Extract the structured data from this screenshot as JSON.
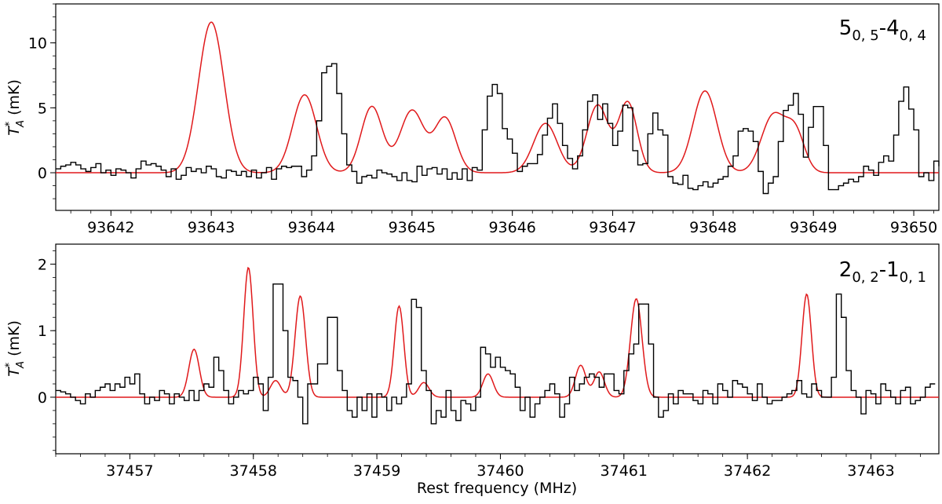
{
  "chart_data": [
    {
      "type": "line",
      "panel_label": {
        "main": "5",
        "sub1": "0, 5",
        "dash": "-4",
        "sub2": "0, 4"
      },
      "ylabel": {
        "symbol": "T",
        "sup": "*",
        "sub": "A",
        "unit": " (mK)"
      },
      "xlabel": "",
      "xlim": [
        93641.45,
        93650.25
      ],
      "ylim": [
        -2.9,
        13.0
      ],
      "xticks": [
        93642,
        93643,
        93644,
        93645,
        93646,
        93647,
        93648,
        93649,
        93650
      ],
      "yticks": [
        0,
        5,
        10
      ],
      "xtick_labels": [
        "93642",
        "93643",
        "93644",
        "93645",
        "93646",
        "93647",
        "93648",
        "93649",
        "93650"
      ],
      "ytick_labels": [
        "0",
        "5",
        "10"
      ],
      "y_minor_step": 1,
      "x_minor_step": 0.2,
      "series": [
        {
          "color": "#000000",
          "style": "steps",
          "x_start": 93641.45,
          "x_step": 0.05,
          "values": [
            0.3,
            0.5,
            0.6,
            0.8,
            0.6,
            0.3,
            0.1,
            0.4,
            0.7,
            0.0,
            0.2,
            -0.2,
            0.3,
            0.2,
            0.0,
            -0.4,
            0.3,
            0.9,
            0.6,
            0.7,
            0.5,
            0.2,
            -0.3,
            0.3,
            -0.5,
            -0.2,
            0.4,
            0.1,
            0.3,
            0.0,
            0.5,
            0.3,
            -0.3,
            -0.4,
            0.2,
            0.1,
            -0.2,
            0.1,
            -0.3,
            0.2,
            -0.4,
            0.0,
            0.4,
            -0.5,
            0.3,
            0.5,
            0.4,
            0.5,
            0.5,
            -0.3,
            0.2,
            1.3,
            4.0,
            7.7,
            8.2,
            8.4,
            6.1,
            3.0,
            0.6,
            0.1,
            -0.8,
            -0.3,
            -0.2,
            -0.4,
            0.2,
            0.0,
            -0.1,
            -0.3,
            -0.6,
            0.0,
            -0.6,
            -0.7,
            0.5,
            -0.2,
            0.3,
            0.4,
            -0.1,
            0.3,
            -0.5,
            0.0,
            -0.5,
            0.3,
            -0.6,
            0.4,
            0.2,
            3.3,
            5.9,
            6.8,
            6.1,
            3.4,
            2.6,
            1.5,
            0.1,
            0.5,
            0.7,
            0.7,
            1.4,
            2.9,
            4.2,
            5.3,
            3.8,
            2.1,
            1.1,
            0.3,
            1.3,
            3.3,
            5.5,
            6.0,
            4.1,
            5.3,
            3.8,
            2.1,
            3.2,
            5.2,
            5.0,
            1.7,
            0.6,
            0.7,
            3.0,
            4.6,
            3.3,
            2.9,
            -0.3,
            -0.8,
            -0.9,
            -0.2,
            -1.2,
            -1.3,
            -1.0,
            -0.7,
            -1.1,
            -0.8,
            -0.5,
            -0.3,
            0.5,
            1.3,
            3.2,
            3.4,
            3.2,
            2.4,
            0.1,
            -1.6,
            -0.8,
            -0.3,
            2.4,
            4.8,
            5.2,
            6.1,
            4.5,
            1.2,
            3.5,
            5.1,
            5.1,
            2.1,
            -1.3,
            -1.3,
            -1.0,
            -0.8,
            -0.5,
            -0.7,
            -0.3,
            0.5,
            0.2,
            -0.2,
            0.8,
            1.3,
            0.9,
            2.9,
            5.5,
            6.6,
            4.9,
            3.3,
            -0.3,
            0.0,
            -0.6,
            0.9,
            0.5,
            0.4,
            1.4,
            2.6,
            3.1,
            2.7,
            4.5,
            3.4,
            2.2,
            1.3,
            0.8,
            2.3,
            1.9,
            0.3,
            0.8,
            -0.2,
            -0.5,
            -2.0,
            -1.3,
            -0.3,
            -1.2,
            0.3,
            -0.1,
            -2.1,
            -0.2,
            2.2,
            1.2,
            -0.4,
            -0.1,
            -1.0,
            -0.2,
            2.3,
            -0.6,
            -0.5
          ]
        },
        {
          "color": "#e0191b",
          "style": "model",
          "components": [
            {
              "center": 93643.0,
              "amp": 11.6,
              "fwhm": 0.3
            },
            {
              "center": 93643.93,
              "amp": 6.0,
              "fwhm": 0.28
            },
            {
              "center": 93644.6,
              "amp": 5.1,
              "fwhm": 0.25
            },
            {
              "center": 93645.0,
              "amp": 4.8,
              "fwhm": 0.28
            },
            {
              "center": 93645.33,
              "amp": 4.2,
              "fwhm": 0.25
            },
            {
              "center": 93646.33,
              "amp": 3.8,
              "fwhm": 0.28
            },
            {
              "center": 93646.85,
              "amp": 5.2,
              "fwhm": 0.25
            },
            {
              "center": 93647.15,
              "amp": 5.4,
              "fwhm": 0.22
            },
            {
              "center": 93647.92,
              "amp": 6.3,
              "fwhm": 0.28
            },
            {
              "center": 93648.6,
              "amp": 4.4,
              "fwhm": 0.28
            },
            {
              "center": 93648.82,
              "amp": 3.0,
              "fwhm": 0.22
            }
          ]
        }
      ]
    },
    {
      "type": "line",
      "panel_label": {
        "main": "2",
        "sub1": "0, 2",
        "dash": "-1",
        "sub2": "0, 1"
      },
      "ylabel": {
        "symbol": "T",
        "sup": "*",
        "sub": "A",
        "unit": " (mK)"
      },
      "xlabel": "Rest frequency (MHz)",
      "xlim": [
        37456.4,
        37463.55
      ],
      "ylim": [
        -0.85,
        2.3
      ],
      "xticks": [
        37457,
        37458,
        37459,
        37460,
        37461,
        37462,
        37463
      ],
      "yticks": [
        0,
        1,
        2
      ],
      "xtick_labels": [
        "37457",
        "37458",
        "37459",
        "37460",
        "37461",
        "37462",
        "37463"
      ],
      "ytick_labels": [
        "0",
        "1",
        "2"
      ],
      "y_minor_step": 0.2,
      "x_minor_step": 0.2,
      "series": [
        {
          "color": "#000000",
          "style": "steps",
          "x_start": 37456.4,
          "x_step": 0.04,
          "values": [
            0.1,
            0.08,
            0.05,
            0.0,
            -0.05,
            -0.1,
            0.05,
            0.0,
            0.1,
            0.15,
            0.2,
            0.1,
            0.2,
            0.15,
            0.3,
            0.2,
            0.35,
            0.05,
            -0.1,
            0.0,
            -0.05,
            0.1,
            0.05,
            -0.1,
            0.05,
            0.0,
            -0.05,
            0.1,
            -0.05,
            0.1,
            0.2,
            0.15,
            0.6,
            0.4,
            0.1,
            -0.1,
            0.0,
            0.1,
            0.05,
            0.1,
            0.3,
            0.2,
            -0.2,
            0.3,
            1.7,
            1.7,
            1.0,
            0.3,
            0.25,
            0.0,
            -0.4,
            0.2,
            0.2,
            0.5,
            0.5,
            1.2,
            1.2,
            0.4,
            0.1,
            -0.2,
            -0.3,
            0.0,
            -0.2,
            0.05,
            -0.3,
            0.05,
            0.0,
            -0.2,
            0.0,
            -0.1,
            0.0,
            0.2,
            1.47,
            1.35,
            0.4,
            0.1,
            -0.4,
            -0.2,
            -0.3,
            0.1,
            -0.2,
            -0.35,
            -0.05,
            -0.1,
            -0.2,
            0.0,
            0.75,
            0.65,
            0.45,
            0.6,
            0.45,
            0.4,
            0.35,
            0.15,
            -0.2,
            0.0,
            -0.3,
            -0.1,
            0.0,
            0.1,
            0.2,
            0.05,
            -0.3,
            -0.1,
            0.3,
            0.1,
            0.2,
            0.3,
            0.35,
            0.3,
            0.15,
            0.35,
            0.35,
            0.1,
            0.05,
            0.4,
            0.65,
            0.8,
            1.4,
            1.4,
            0.8,
            0.0,
            -0.3,
            -0.2,
            0.05,
            -0.1,
            0.1,
            0.05,
            0.05,
            -0.05,
            -0.1,
            0.1,
            0.05,
            -0.1,
            0.2,
            0.1,
            0.0,
            0.25,
            0.2,
            0.15,
            0.05,
            -0.05,
            0.2,
            0.0,
            -0.1,
            -0.05,
            -0.05,
            0.0,
            0.05,
            0.1,
            0.25,
            0.05,
            0.0,
            0.2,
            0.1,
            0.0,
            0.0,
            0.3,
            1.55,
            1.2,
            0.4,
            0.1,
            0.0,
            -0.25,
            0.1,
            0.05,
            -0.1,
            0.2,
            0.1,
            0.0,
            -0.1,
            0.1,
            0.15,
            -0.1,
            -0.05,
            0.0,
            0.15,
            0.2
          ]
        },
        {
          "color": "#e0191b",
          "style": "model",
          "components": [
            {
              "center": 37457.52,
              "amp": 0.72,
              "fwhm": 0.1
            },
            {
              "center": 37457.96,
              "amp": 1.95,
              "fwhm": 0.09
            },
            {
              "center": 37458.18,
              "amp": 0.25,
              "fwhm": 0.1
            },
            {
              "center": 37458.38,
              "amp": 1.52,
              "fwhm": 0.1
            },
            {
              "center": 37459.18,
              "amp": 1.37,
              "fwhm": 0.09
            },
            {
              "center": 37459.38,
              "amp": 0.22,
              "fwhm": 0.1
            },
            {
              "center": 37459.9,
              "amp": 0.35,
              "fwhm": 0.1
            },
            {
              "center": 37460.65,
              "amp": 0.48,
              "fwhm": 0.1
            },
            {
              "center": 37460.8,
              "amp": 0.38,
              "fwhm": 0.1
            },
            {
              "center": 37461.1,
              "amp": 1.48,
              "fwhm": 0.11
            },
            {
              "center": 37462.48,
              "amp": 1.55,
              "fwhm": 0.09
            }
          ]
        }
      ]
    }
  ]
}
